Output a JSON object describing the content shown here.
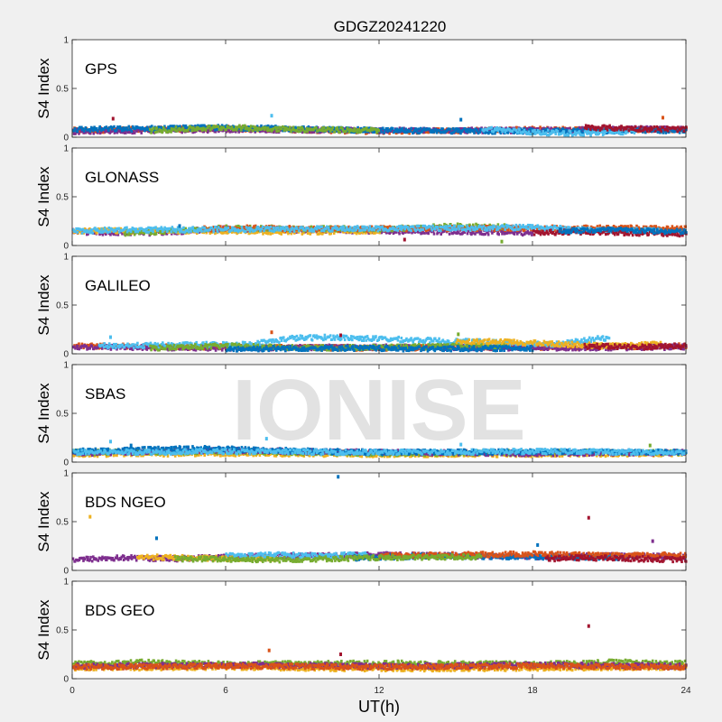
{
  "chart_data": {
    "type": "scatter",
    "title": "GDGZ20241220",
    "xlabel": "UT(h)",
    "ylabel": "S4 Index",
    "xlim": [
      0,
      24
    ],
    "ylim": [
      0,
      1
    ],
    "xticks": [
      0,
      6,
      12,
      18,
      24
    ],
    "yticks": [
      0,
      0.5,
      1
    ],
    "grid": false,
    "watermark": "IONISE",
    "series_colors": [
      "#0072bd",
      "#d95319",
      "#edb120",
      "#7e2f8e",
      "#77ac30",
      "#4dbeee",
      "#a2142f"
    ],
    "panels": [
      {
        "name": "GPS",
        "tracks": [
          {
            "color": "#d95319",
            "x": [
              0,
              6,
              12,
              18,
              24
            ],
            "y": [
              0.07,
              0.09,
              0.06,
              0.08,
              0.08
            ]
          },
          {
            "color": "#7e2f8e",
            "x": [
              0,
              6,
              12,
              18,
              24
            ],
            "y": [
              0.06,
              0.08,
              0.07,
              0.07,
              0.09
            ]
          },
          {
            "color": "#0072bd",
            "x": [
              0,
              6,
              12,
              18,
              24
            ],
            "y": [
              0.08,
              0.1,
              0.07,
              0.06,
              0.07
            ]
          },
          {
            "color": "#4dbeee",
            "x": [
              16,
              18,
              20,
              22
            ],
            "y": [
              0.09,
              0.05,
              0.04,
              0.06
            ]
          },
          {
            "color": "#77ac30",
            "x": [
              3,
              6,
              9,
              12
            ],
            "y": [
              0.07,
              0.1,
              0.08,
              0.07
            ]
          },
          {
            "color": "#a2142f",
            "x": [
              20,
              22,
              24
            ],
            "y": [
              0.1,
              0.09,
              0.08
            ]
          }
        ],
        "outliers": [
          {
            "x": 1.6,
            "y": 0.19,
            "color": "#a2142f"
          },
          {
            "x": 7.8,
            "y": 0.22,
            "color": "#4dbeee"
          },
          {
            "x": 15.2,
            "y": 0.18,
            "color": "#0072bd"
          },
          {
            "x": 23.1,
            "y": 0.2,
            "color": "#d95319"
          }
        ]
      },
      {
        "name": "GLONASS",
        "tracks": [
          {
            "color": "#7e2f8e",
            "x": [
              0,
              3,
              6,
              9,
              12,
              15,
              18
            ],
            "y": [
              0.14,
              0.13,
              0.17,
              0.16,
              0.15,
              0.14,
              0.13
            ]
          },
          {
            "color": "#edb120",
            "x": [
              0,
              3,
              6,
              9,
              12
            ],
            "y": [
              0.15,
              0.15,
              0.15,
              0.14,
              0.15
            ]
          },
          {
            "color": "#77ac30",
            "x": [
              2,
              4,
              6,
              12,
              15,
              17
            ],
            "y": [
              0.13,
              0.15,
              0.18,
              0.17,
              0.2,
              0.19
            ]
          },
          {
            "color": "#d95319",
            "x": [
              5,
              7,
              9,
              21,
              24
            ],
            "y": [
              0.17,
              0.18,
              0.17,
              0.18,
              0.17
            ]
          },
          {
            "color": "#4dbeee",
            "x": [
              0,
              2,
              16,
              18,
              20,
              23
            ],
            "y": [
              0.15,
              0.16,
              0.18,
              0.19,
              0.16,
              0.15
            ]
          },
          {
            "color": "#a2142f",
            "x": [
              18,
              20,
              22,
              24
            ],
            "y": [
              0.13,
              0.14,
              0.13,
              0.12
            ]
          },
          {
            "color": "#0072bd",
            "x": [
              19,
              21,
              24
            ],
            "y": [
              0.15,
              0.16,
              0.14
            ]
          }
        ],
        "outliers": [
          {
            "x": 4.2,
            "y": 0.2,
            "color": "#0072bd"
          },
          {
            "x": 13.0,
            "y": 0.06,
            "color": "#a2142f"
          },
          {
            "x": 16.8,
            "y": 0.04,
            "color": "#77ac30"
          }
        ]
      },
      {
        "name": "GALILEO",
        "tracks": [
          {
            "color": "#d95319",
            "x": [
              0,
              6,
              12,
              18,
              24
            ],
            "y": [
              0.08,
              0.07,
              0.06,
              0.07,
              0.08
            ]
          },
          {
            "color": "#7e2f8e",
            "x": [
              0,
              6,
              12,
              18,
              24
            ],
            "y": [
              0.07,
              0.06,
              0.07,
              0.06,
              0.07
            ]
          },
          {
            "color": "#4dbeee",
            "x": [
              1,
              4,
              7,
              8.5,
              10,
              16,
              19,
              21
            ],
            "y": [
              0.08,
              0.09,
              0.1,
              0.16,
              0.17,
              0.12,
              0.1,
              0.17
            ]
          },
          {
            "color": "#77ac30",
            "x": [
              3,
              6,
              9,
              13,
              17
            ],
            "y": [
              0.06,
              0.08,
              0.06,
              0.07,
              0.08
            ]
          },
          {
            "color": "#edb120",
            "x": [
              15,
              17,
              19,
              21,
              23
            ],
            "y": [
              0.13,
              0.12,
              0.1,
              0.08,
              0.1
            ]
          },
          {
            "color": "#0072bd",
            "x": [
              6,
              10,
              14,
              18
            ],
            "y": [
              0.05,
              0.06,
              0.05,
              0.06
            ]
          },
          {
            "color": "#a2142f",
            "x": [
              20,
              22,
              24
            ],
            "y": [
              0.08,
              0.07,
              0.08
            ]
          }
        ],
        "outliers": [
          {
            "x": 1.5,
            "y": 0.17,
            "color": "#4dbeee"
          },
          {
            "x": 7.8,
            "y": 0.22,
            "color": "#d95319"
          },
          {
            "x": 10.5,
            "y": 0.19,
            "color": "#a2142f"
          },
          {
            "x": 15.1,
            "y": 0.2,
            "color": "#77ac30"
          }
        ]
      },
      {
        "name": "SBAS",
        "tracks": [
          {
            "color": "#edb120",
            "x": [
              0,
              6,
              12,
              18,
              24
            ],
            "y": [
              0.08,
              0.09,
              0.08,
              0.08,
              0.09
            ]
          },
          {
            "color": "#77ac30",
            "x": [
              0,
              6,
              12,
              18,
              24
            ],
            "y": [
              0.1,
              0.11,
              0.09,
              0.1,
              0.1
            ]
          },
          {
            "color": "#7e2f8e",
            "x": [
              0,
              6,
              12,
              18,
              24
            ],
            "y": [
              0.09,
              0.12,
              0.1,
              0.09,
              0.1
            ]
          },
          {
            "color": "#0072bd",
            "x": [
              0,
              5,
              8,
              12,
              18,
              24
            ],
            "y": [
              0.11,
              0.14,
              0.12,
              0.1,
              0.11,
              0.1
            ]
          },
          {
            "color": "#4dbeee",
            "x": [
              0,
              6,
              12,
              18,
              24
            ],
            "y": [
              0.1,
              0.11,
              0.1,
              0.11,
              0.1
            ]
          }
        ],
        "outliers": [
          {
            "x": 1.5,
            "y": 0.21,
            "color": "#4dbeee"
          },
          {
            "x": 2.3,
            "y": 0.17,
            "color": "#0072bd"
          },
          {
            "x": 7.6,
            "y": 0.24,
            "color": "#4dbeee"
          },
          {
            "x": 15.2,
            "y": 0.18,
            "color": "#4dbeee"
          },
          {
            "x": 22.6,
            "y": 0.17,
            "color": "#77ac30"
          }
        ]
      },
      {
        "name": "BDS NGEO",
        "tracks": [
          {
            "color": "#7e2f8e",
            "x": [
              0,
              2,
              4,
              6,
              9,
              12,
              15,
              18,
              21,
              24
            ],
            "y": [
              0.11,
              0.13,
              0.12,
              0.14,
              0.15,
              0.16,
              0.15,
              0.14,
              0.15,
              0.14
            ]
          },
          {
            "color": "#edb120",
            "x": [
              2.5,
              4,
              6,
              8
            ],
            "y": [
              0.14,
              0.13,
              0.12,
              0.13
            ]
          },
          {
            "color": "#4dbeee",
            "x": [
              6,
              8,
              10,
              11.5
            ],
            "y": [
              0.15,
              0.16,
              0.15,
              0.17
            ]
          },
          {
            "color": "#0072bd",
            "x": [
              11,
              12.5,
              14,
              18,
              22
            ],
            "y": [
              0.13,
              0.14,
              0.15,
              0.14,
              0.13
            ]
          },
          {
            "color": "#d95319",
            "x": [
              12,
              15,
              18,
              21,
              24
            ],
            "y": [
              0.15,
              0.16,
              0.17,
              0.15,
              0.16
            ]
          },
          {
            "color": "#a2142f",
            "x": [
              18.5,
              20,
              22,
              24
            ],
            "y": [
              0.12,
              0.13,
              0.12,
              0.11
            ]
          },
          {
            "color": "#77ac30",
            "x": [
              4,
              8,
              12,
              16
            ],
            "y": [
              0.12,
              0.11,
              0.13,
              0.14
            ]
          }
        ],
        "outliers": [
          {
            "x": 0.7,
            "y": 0.55,
            "color": "#edb120"
          },
          {
            "x": 3.3,
            "y": 0.33,
            "color": "#0072bd"
          },
          {
            "x": 10.4,
            "y": 0.96,
            "color": "#0072bd"
          },
          {
            "x": 18.2,
            "y": 0.26,
            "color": "#0072bd"
          },
          {
            "x": 20.2,
            "y": 0.54,
            "color": "#a2142f"
          },
          {
            "x": 22.7,
            "y": 0.3,
            "color": "#7e2f8e"
          }
        ]
      },
      {
        "name": "BDS GEO",
        "tracks": [
          {
            "color": "#77ac30",
            "x": [
              0,
              3,
              6,
              12,
              18,
              21,
              24
            ],
            "y": [
              0.15,
              0.17,
              0.15,
              0.16,
              0.15,
              0.17,
              0.16
            ]
          },
          {
            "color": "#edb120",
            "x": [
              0,
              6,
              12,
              18,
              24
            ],
            "y": [
              0.11,
              0.12,
              0.1,
              0.11,
              0.12
            ]
          },
          {
            "color": "#7e2f8e",
            "x": [
              0,
              6,
              12,
              18,
              24
            ],
            "y": [
              0.13,
              0.14,
              0.13,
              0.14,
              0.13
            ]
          },
          {
            "color": "#d95319",
            "x": [
              0,
              6,
              12,
              18,
              24
            ],
            "y": [
              0.12,
              0.13,
              0.12,
              0.13,
              0.12
            ]
          }
        ],
        "outliers": [
          {
            "x": 7.7,
            "y": 0.29,
            "color": "#d95319"
          },
          {
            "x": 10.5,
            "y": 0.25,
            "color": "#a2142f"
          },
          {
            "x": 20.2,
            "y": 0.54,
            "color": "#a2142f"
          }
        ]
      }
    ]
  }
}
